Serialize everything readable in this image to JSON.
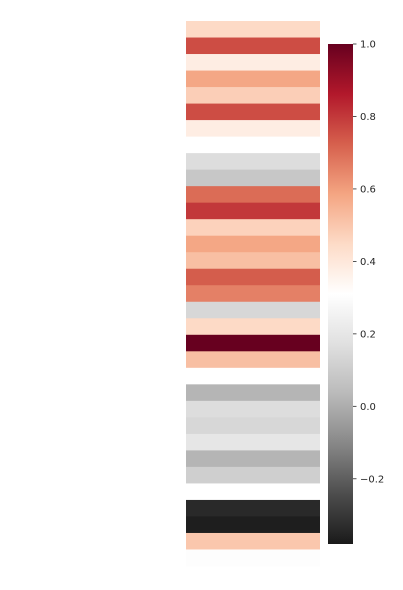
{
  "chart_data": {
    "type": "heatmap",
    "title": "",
    "xlabel": "",
    "ylabel": "",
    "grid": false,
    "colormap": "RdGy_r",
    "nan_color": "#ffffff",
    "columns": 1,
    "rows": 33,
    "values": [
      0.45,
      0.76,
      0.38,
      0.58,
      0.48,
      0.76,
      0.38,
      null,
      0.16,
      0.08,
      0.7,
      0.8,
      0.47,
      0.58,
      0.52,
      0.73,
      0.66,
      0.14,
      0.45,
      1.0,
      0.52,
      null,
      0.02,
      0.16,
      0.14,
      0.2,
      0.02,
      0.11,
      null,
      -0.34,
      -0.37,
      0.5,
      0.3
    ],
    "colorbar": {
      "vmin": -0.38,
      "vmax": 1.0,
      "ticks": [
        1.0,
        0.8,
        0.6,
        0.4,
        0.2,
        0.0,
        -0.2
      ],
      "tick_labels": [
        "1.0",
        "0.8",
        "0.6",
        "0.4",
        "0.2",
        "0.0",
        "−0.2"
      ]
    }
  }
}
